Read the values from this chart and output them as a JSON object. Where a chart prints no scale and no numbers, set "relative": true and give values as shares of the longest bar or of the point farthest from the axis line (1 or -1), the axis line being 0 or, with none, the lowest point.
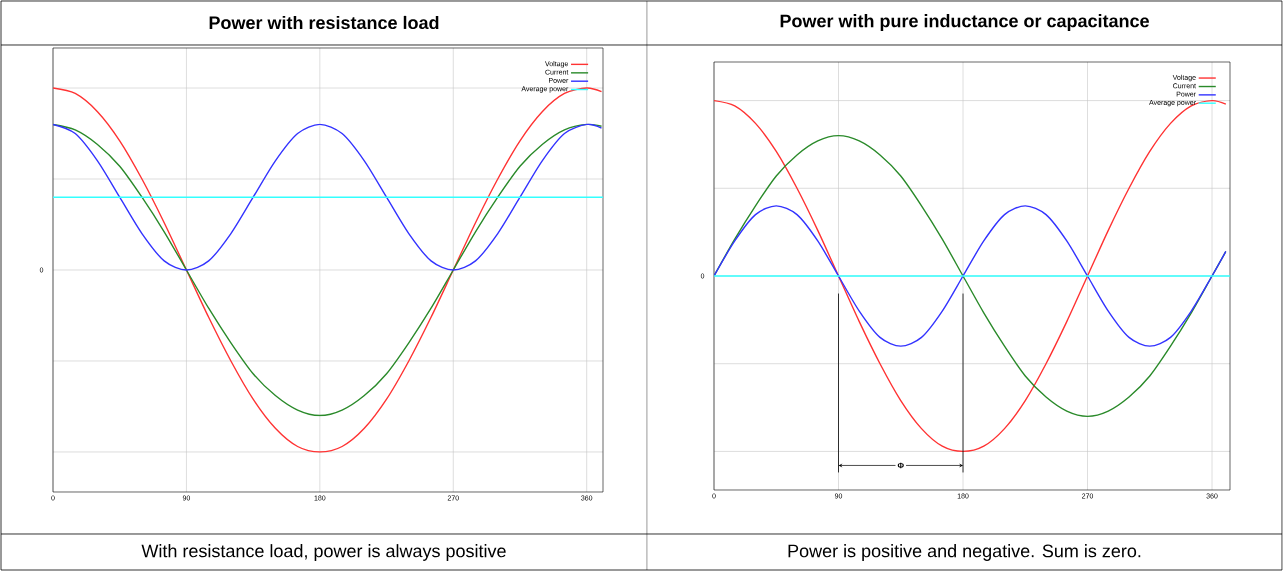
{
  "chart_data": [
    {
      "type": "line",
      "title": "Power with resistance load",
      "relative": true,
      "grid": true,
      "legend": "top right",
      "x": [
        0,
        15,
        30,
        45,
        60,
        75,
        90,
        105,
        120,
        135,
        150,
        165,
        180,
        195,
        210,
        225,
        240,
        255,
        270,
        285,
        300,
        315,
        330,
        345,
        360,
        370
      ],
      "xlim": [
        0,
        371
      ],
      "xticks": [
        0,
        90,
        180,
        270,
        360
      ],
      "series": [
        {
          "name": "Voltage",
          "color": "#ff3333",
          "values": [
            1,
            0.97,
            0.87,
            0.71,
            0.5,
            0.26,
            0,
            -0.26,
            -0.5,
            -0.71,
            -0.87,
            -0.97,
            -1,
            -0.97,
            -0.87,
            -0.71,
            -0.5,
            -0.26,
            0,
            0.26,
            0.5,
            0.71,
            0.87,
            0.97,
            1,
            0.98
          ]
        },
        {
          "name": "Current",
          "color": "#2a8a2a",
          "values": [
            0.8,
            0.77,
            0.69,
            0.57,
            0.4,
            0.21,
            0,
            -0.21,
            -0.4,
            -0.57,
            -0.69,
            -0.77,
            -0.8,
            -0.77,
            -0.69,
            -0.57,
            -0.4,
            -0.21,
            0,
            0.21,
            0.4,
            0.57,
            0.69,
            0.77,
            0.8,
            0.79
          ]
        },
        {
          "name": "Power",
          "color": "#3333ff",
          "values": [
            0.8,
            0.75,
            0.6,
            0.4,
            0.2,
            0.05,
            0,
            0.05,
            0.2,
            0.4,
            0.6,
            0.75,
            0.8,
            0.75,
            0.6,
            0.4,
            0.2,
            0.05,
            0,
            0.05,
            0.2,
            0.4,
            0.6,
            0.75,
            0.8,
            0.78
          ]
        },
        {
          "name": "Average power",
          "color": "#33ffff",
          "x": [
            0,
            371
          ],
          "values": [
            0.4,
            0.4
          ]
        }
      ],
      "annotations": [
        "0",
        "With resistance load, power is always positive"
      ]
    },
    {
      "type": "line",
      "title": "Power with pure inductance or capacitance",
      "relative": true,
      "grid": true,
      "legend": "top right",
      "x": [
        0,
        15,
        30,
        45,
        60,
        75,
        90,
        105,
        120,
        135,
        150,
        165,
        180,
        195,
        210,
        225,
        240,
        255,
        270,
        285,
        300,
        315,
        330,
        345,
        360,
        370
      ],
      "xlim": [
        0,
        373
      ],
      "xticks": [
        0,
        90,
        180,
        270,
        360
      ],
      "series": [
        {
          "name": "Voltage",
          "color": "#ff3333",
          "values": [
            1,
            0.97,
            0.87,
            0.71,
            0.5,
            0.26,
            0,
            -0.26,
            -0.5,
            -0.71,
            -0.87,
            -0.97,
            -1,
            -0.97,
            -0.87,
            -0.71,
            -0.5,
            -0.26,
            0,
            0.26,
            0.5,
            0.71,
            0.87,
            0.97,
            1,
            0.98
          ]
        },
        {
          "name": "Current",
          "color": "#2a8a2a",
          "values": [
            0,
            0.21,
            0.4,
            0.57,
            0.69,
            0.77,
            0.8,
            0.77,
            0.69,
            0.57,
            0.4,
            0.21,
            0,
            -0.21,
            -0.4,
            -0.57,
            -0.69,
            -0.77,
            -0.8,
            -0.77,
            -0.69,
            -0.57,
            -0.4,
            -0.21,
            0,
            0.14
          ]
        },
        {
          "name": "Power",
          "color": "#3333ff",
          "values": [
            0,
            0.2,
            0.35,
            0.4,
            0.35,
            0.2,
            0,
            -0.2,
            -0.35,
            -0.4,
            -0.35,
            -0.2,
            0,
            0.2,
            0.35,
            0.4,
            0.35,
            0.2,
            0,
            -0.2,
            -0.35,
            -0.4,
            -0.35,
            -0.2,
            0,
            0.14
          ]
        },
        {
          "name": "Average power",
          "color": "#33ffff",
          "x": [
            0,
            373
          ],
          "values": [
            0,
            0
          ]
        }
      ],
      "ref_lines": [
        {
          "axis": "x",
          "value": 90,
          "color": "#000000"
        },
        {
          "axis": "x",
          "value": 180,
          "color": "#000000"
        }
      ],
      "annotations": [
        "0",
        "Power is positive and negative. Sum is zero.",
        "Φ"
      ]
    }
  ]
}
